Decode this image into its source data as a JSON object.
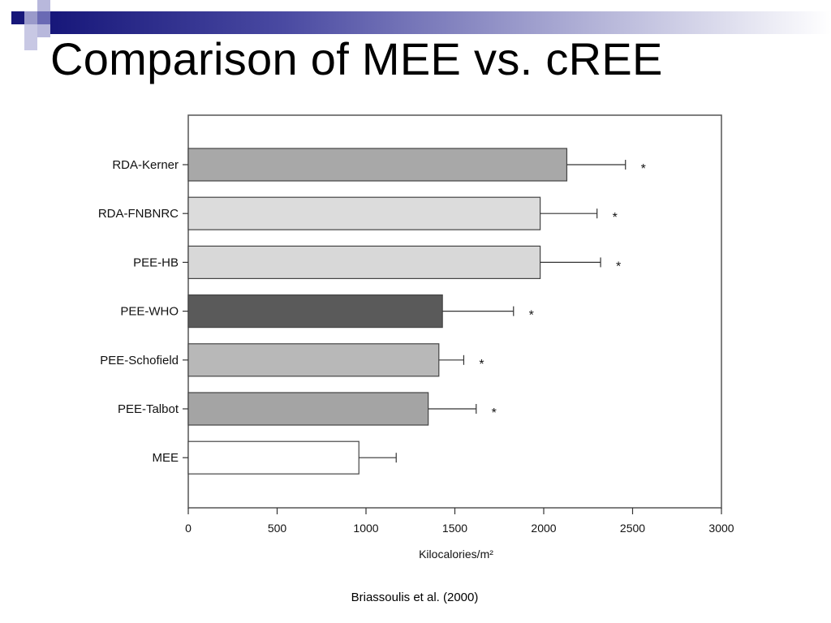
{
  "slide": {
    "title": "Comparison of MEE vs. cREE",
    "caption": "Briassoulis et al. (2000)"
  },
  "colors": {
    "accent_dark": "#17177a",
    "accent_mid": "#6a6ab4",
    "accent_light": "#b8b8dc"
  },
  "chart_data": {
    "type": "bar",
    "orientation": "horizontal",
    "categories": [
      "RDA-Kerner",
      "RDA-FNBNRC",
      "PEE-HB",
      "PEE-WHO",
      "PEE-Schofield",
      "PEE-Talbot",
      "MEE"
    ],
    "values": [
      2130,
      1980,
      1980,
      1430,
      1410,
      1350,
      960
    ],
    "error_bars": [
      330,
      320,
      340,
      400,
      140,
      270,
      210
    ],
    "significance": [
      "*",
      "*",
      "*",
      "*",
      "*",
      "*",
      ""
    ],
    "bar_colors": [
      "#a8a8a8",
      "#dcdcdc",
      "#d8d8d8",
      "#5a5a5a",
      "#b8b8b8",
      "#a4a4a4",
      "#ffffff"
    ],
    "xlabel": "Kilocalories/m²",
    "xlim": [
      0,
      3000
    ],
    "xticks": [
      0,
      500,
      1000,
      1500,
      2000,
      2500,
      3000
    ],
    "grid": false
  }
}
